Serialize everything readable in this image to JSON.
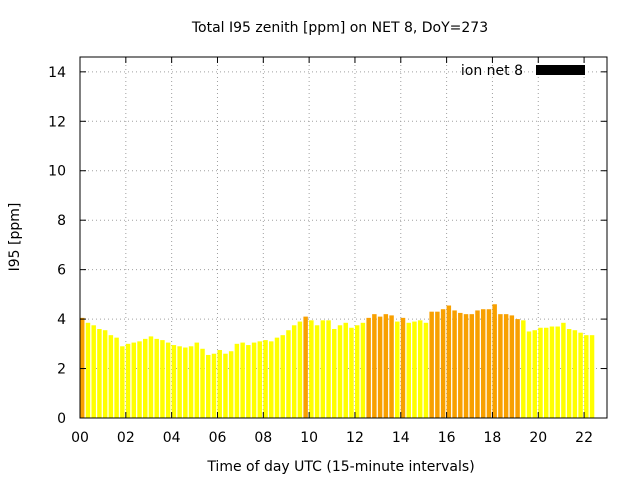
{
  "chart_data": {
    "type": "bar",
    "title": "Total I95 zenith [ppm] on NET 8, DoY=273",
    "xlabel": "Time of day UTC (15-minute intervals)",
    "ylabel": "I95 [ppm]",
    "xlim": [
      0,
      23
    ],
    "ylim": [
      0,
      14.6
    ],
    "x_ticks": [
      0,
      2,
      4,
      6,
      8,
      10,
      12,
      14,
      16,
      18,
      20,
      22
    ],
    "x_tick_labels": [
      "00",
      "02",
      "04",
      "06",
      "08",
      "10",
      "12",
      "14",
      "16",
      "18",
      "20",
      "22"
    ],
    "y_ticks": [
      0,
      2,
      4,
      6,
      8,
      10,
      12,
      14
    ],
    "y_tick_labels": [
      "0",
      "2",
      "4",
      "6",
      "8",
      "10",
      "12",
      "14"
    ],
    "grid": true,
    "legend": {
      "position": "top-right",
      "label": "ion net 8",
      "color": "#000000"
    },
    "colors": {
      "low": "#ffff00",
      "high": "#f8a000",
      "threshold": 4.0
    },
    "interval_hours": 0.25,
    "values": [
      4.05,
      3.85,
      3.75,
      3.6,
      3.55,
      3.35,
      3.25,
      2.9,
      3.0,
      3.05,
      3.1,
      3.2,
      3.3,
      3.2,
      3.15,
      3.05,
      2.95,
      2.9,
      2.85,
      2.9,
      3.05,
      2.8,
      2.55,
      2.6,
      2.75,
      2.6,
      2.7,
      3.0,
      3.05,
      2.95,
      3.05,
      3.1,
      3.15,
      3.1,
      3.25,
      3.35,
      3.55,
      3.75,
      3.9,
      4.1,
      3.95,
      3.75,
      3.95,
      3.95,
      3.6,
      3.75,
      3.85,
      3.65,
      3.75,
      3.85,
      4.05,
      4.2,
      4.1,
      4.2,
      4.15,
      3.9,
      4.05,
      3.85,
      3.9,
      3.95,
      3.85,
      4.3,
      4.3,
      4.4,
      4.55,
      4.35,
      4.25,
      4.2,
      4.2,
      4.35,
      4.4,
      4.4,
      4.6,
      4.2,
      4.2,
      4.15,
      4.0,
      3.95,
      3.5,
      3.55,
      3.65,
      3.65,
      3.7,
      3.7,
      3.85,
      3.6,
      3.55,
      3.45,
      3.35,
      3.35
    ]
  }
}
